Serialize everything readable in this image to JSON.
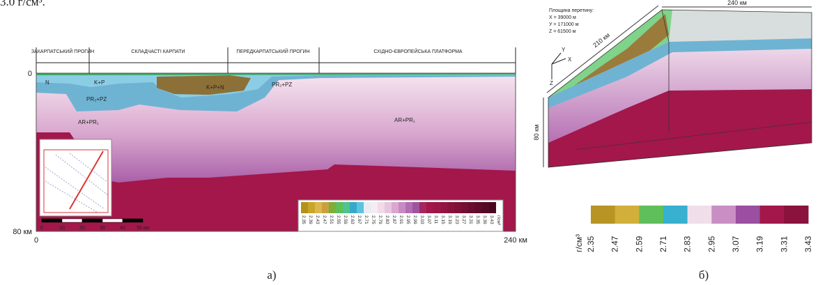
{
  "intro_fragment": "3.0 г/см³.",
  "panel_a": {
    "regions": [
      "ЗАКАРПАТСЬКИЙ ПРОГИН",
      "СКЛАДЧАСТІ КАРПАТИ",
      "ПЕРЕДКАРПАТСЬКИЙ ПРОГИН",
      "СХІДНО-ЄВРОПЕЙСЬКА ПЛАТФОРМА"
    ],
    "units": [
      "N",
      "K+P",
      "K+P+N",
      "PR₃+PZ",
      "PR₃+PZ",
      "AR+PR₁",
      "AR+PR₁"
    ],
    "depth_axis": {
      "top": "0",
      "bottom": "80 км"
    },
    "distance_axis": {
      "start": "0",
      "end": "240 км"
    },
    "scale_bar": [
      "0",
      "10",
      "20",
      "30",
      "40",
      "50 км"
    ],
    "legend": {
      "ticks": [
        "2.35",
        "2.39",
        "2.43",
        "2.47",
        "2.51",
        "2.55",
        "2.59",
        "2.63",
        "2.67",
        "2.71",
        "2.75",
        "2.79",
        "2.83",
        "2.87",
        "2.91",
        "2.95",
        "2.99",
        "3.03",
        "3.07",
        "3.11",
        "3.15",
        "3.19",
        "3.23",
        "3.27",
        "3.31",
        "3.35",
        "3.39",
        "3.43"
      ],
      "unit": "г/см³"
    },
    "caption": "а)"
  },
  "panel_b": {
    "plane_title": "Площина перетину:",
    "plane_coords": [
      "X = 39000 м",
      "У = 171000 м",
      "Z = 61500 м"
    ],
    "dims": {
      "length": "240 км",
      "width": "210 км",
      "depth": "80 км"
    },
    "axes": [
      "X",
      "Y",
      "Z"
    ],
    "legend": {
      "unit": "г/см³",
      "ticks": [
        "2.35",
        "2.47",
        "2.59",
        "2.71",
        "2.83",
        "2.95",
        "3.07",
        "3.19",
        "3.31",
        "3.43"
      ]
    },
    "caption": "б)"
  }
}
